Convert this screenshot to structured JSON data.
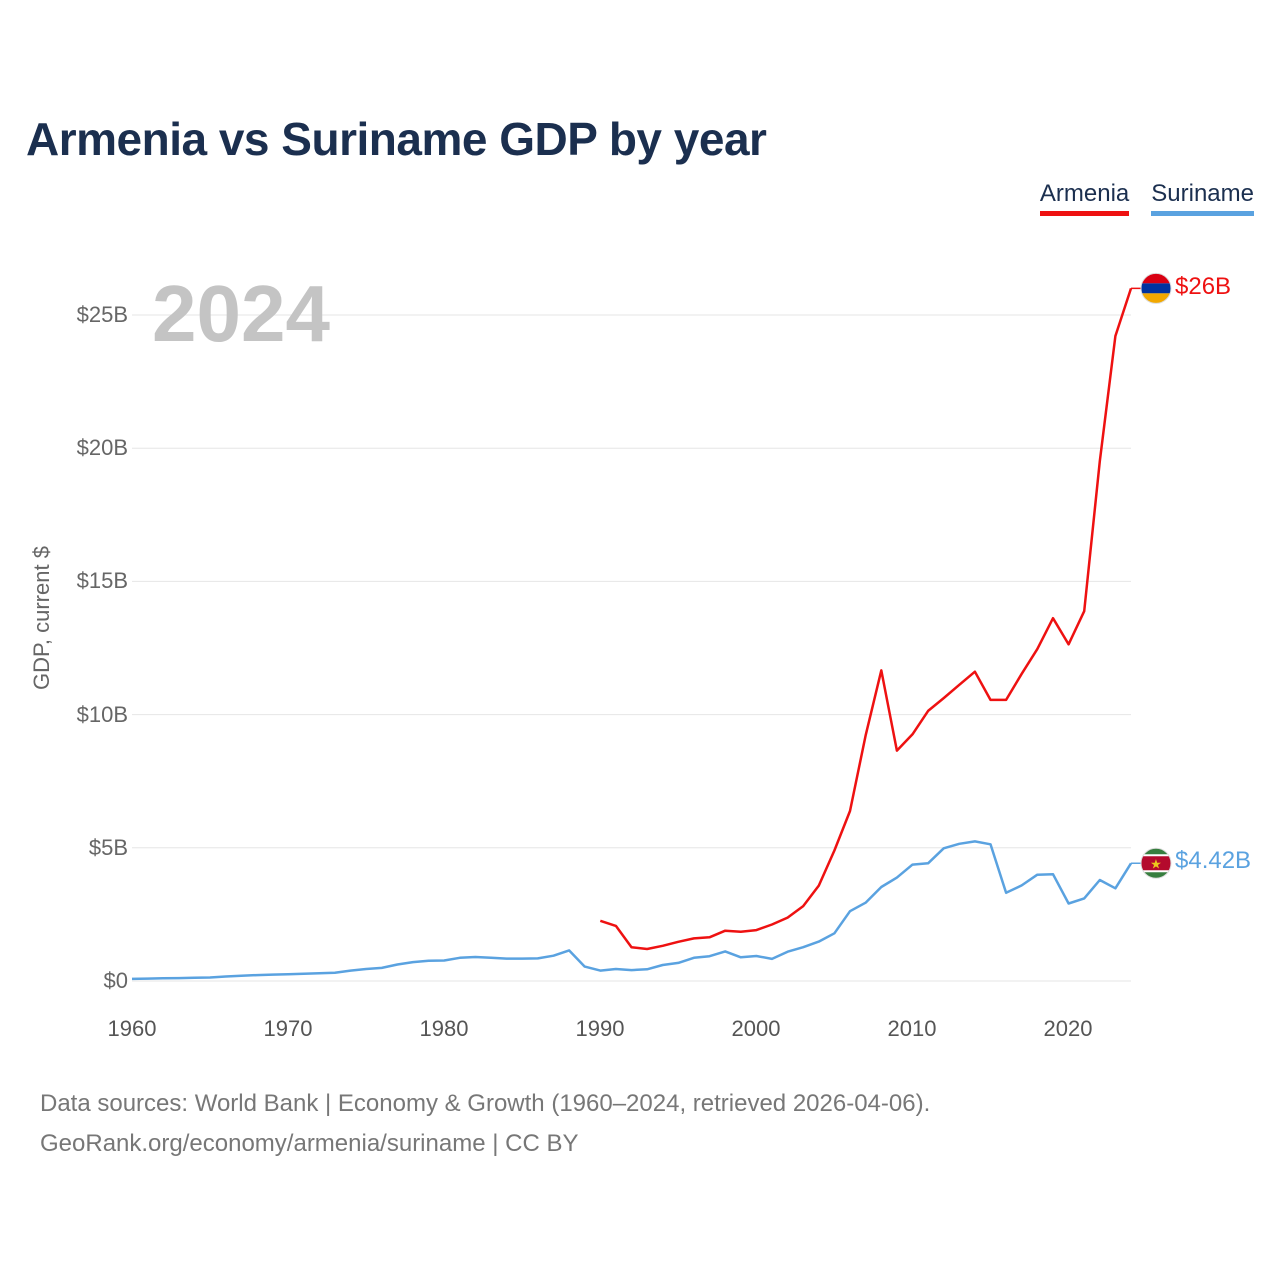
{
  "title": "Armenia vs Suriname GDP by year",
  "current_year": "2024",
  "source_lines": [
    "Data sources: World Bank | Economy & Growth (1960–2024, retrieved 2026-04-06).",
    "GeoRank.org/economy/armenia/suriname | CC BY"
  ],
  "colors": {
    "armenia": "#ee1111",
    "suriname": "#5aa2e0",
    "title": "#1b2f4f"
  },
  "chart_data": {
    "type": "line",
    "title": "Armenia vs Suriname GDP by year",
    "xlabel": "",
    "ylabel": "GDP, current $",
    "xlim": [
      1960,
      2024
    ],
    "ylim": [
      0,
      25
    ],
    "y_unit": "billions USD",
    "x_ticks": [
      1960,
      1970,
      1980,
      1990,
      2000,
      2010,
      2020
    ],
    "y_ticks": [
      {
        "value": 0,
        "label": "$0"
      },
      {
        "value": 5,
        "label": "$5B"
      },
      {
        "value": 10,
        "label": "$10B"
      },
      {
        "value": 15,
        "label": "$15B"
      },
      {
        "value": 20,
        "label": "$20B"
      },
      {
        "value": 25,
        "label": "$25B"
      }
    ],
    "grid": true,
    "legend": "top-right",
    "series": [
      {
        "name": "Armenia",
        "color": "#ee1111",
        "end_label": "$26B",
        "flag": "armenia-flag-icon",
        "points": [
          [
            1990,
            2.26
          ],
          [
            1991,
            2.07
          ],
          [
            1992,
            1.27
          ],
          [
            1993,
            1.2
          ],
          [
            1994,
            1.32
          ],
          [
            1995,
            1.47
          ],
          [
            1996,
            1.6
          ],
          [
            1997,
            1.64
          ],
          [
            1998,
            1.89
          ],
          [
            1999,
            1.85
          ],
          [
            2000,
            1.91
          ],
          [
            2001,
            2.12
          ],
          [
            2002,
            2.38
          ],
          [
            2003,
            2.81
          ],
          [
            2004,
            3.58
          ],
          [
            2005,
            4.9
          ],
          [
            2006,
            6.38
          ],
          [
            2007,
            9.21
          ],
          [
            2008,
            11.66
          ],
          [
            2009,
            8.65
          ],
          [
            2010,
            9.26
          ],
          [
            2011,
            10.14
          ],
          [
            2012,
            10.62
          ],
          [
            2013,
            11.12
          ],
          [
            2014,
            11.61
          ],
          [
            2015,
            10.55
          ],
          [
            2016,
            10.55
          ],
          [
            2017,
            11.53
          ],
          [
            2018,
            12.46
          ],
          [
            2019,
            13.62
          ],
          [
            2020,
            12.64
          ],
          [
            2021,
            13.88
          ],
          [
            2022,
            19.51
          ],
          [
            2023,
            24.21
          ],
          [
            2024,
            26.0
          ]
        ]
      },
      {
        "name": "Suriname",
        "color": "#5aa2e0",
        "end_label": "$4.42B",
        "flag": "suriname-flag-icon",
        "points": [
          [
            1960,
            0.08
          ],
          [
            1961,
            0.09
          ],
          [
            1962,
            0.1
          ],
          [
            1963,
            0.11
          ],
          [
            1964,
            0.12
          ],
          [
            1965,
            0.13
          ],
          [
            1966,
            0.17
          ],
          [
            1967,
            0.2
          ],
          [
            1968,
            0.22
          ],
          [
            1969,
            0.24
          ],
          [
            1970,
            0.25
          ],
          [
            1971,
            0.27
          ],
          [
            1972,
            0.29
          ],
          [
            1973,
            0.31
          ],
          [
            1974,
            0.39
          ],
          [
            1975,
            0.45
          ],
          [
            1976,
            0.49
          ],
          [
            1977,
            0.62
          ],
          [
            1978,
            0.71
          ],
          [
            1979,
            0.76
          ],
          [
            1980,
            0.77
          ],
          [
            1981,
            0.87
          ],
          [
            1982,
            0.9
          ],
          [
            1983,
            0.87
          ],
          [
            1984,
            0.84
          ],
          [
            1985,
            0.84
          ],
          [
            1986,
            0.85
          ],
          [
            1987,
            0.95
          ],
          [
            1988,
            1.15
          ],
          [
            1989,
            0.54
          ],
          [
            1990,
            0.39
          ],
          [
            1991,
            0.45
          ],
          [
            1992,
            0.41
          ],
          [
            1993,
            0.44
          ],
          [
            1994,
            0.6
          ],
          [
            1995,
            0.68
          ],
          [
            1996,
            0.87
          ],
          [
            1997,
            0.93
          ],
          [
            1998,
            1.11
          ],
          [
            1999,
            0.89
          ],
          [
            2000,
            0.94
          ],
          [
            2001,
            0.83
          ],
          [
            2002,
            1.1
          ],
          [
            2003,
            1.27
          ],
          [
            2004,
            1.48
          ],
          [
            2005,
            1.79
          ],
          [
            2006,
            2.62
          ],
          [
            2007,
            2.94
          ],
          [
            2008,
            3.53
          ],
          [
            2009,
            3.88
          ],
          [
            2010,
            4.37
          ],
          [
            2011,
            4.42
          ],
          [
            2012,
            4.98
          ],
          [
            2013,
            5.15
          ],
          [
            2014,
            5.24
          ],
          [
            2015,
            5.13
          ],
          [
            2016,
            3.31
          ],
          [
            2017,
            3.59
          ],
          [
            2018,
            3.99
          ],
          [
            2019,
            4.01
          ],
          [
            2020,
            2.91
          ],
          [
            2021,
            3.1
          ],
          [
            2022,
            3.79
          ],
          [
            2023,
            3.48
          ],
          [
            2024,
            4.42
          ]
        ]
      }
    ]
  }
}
